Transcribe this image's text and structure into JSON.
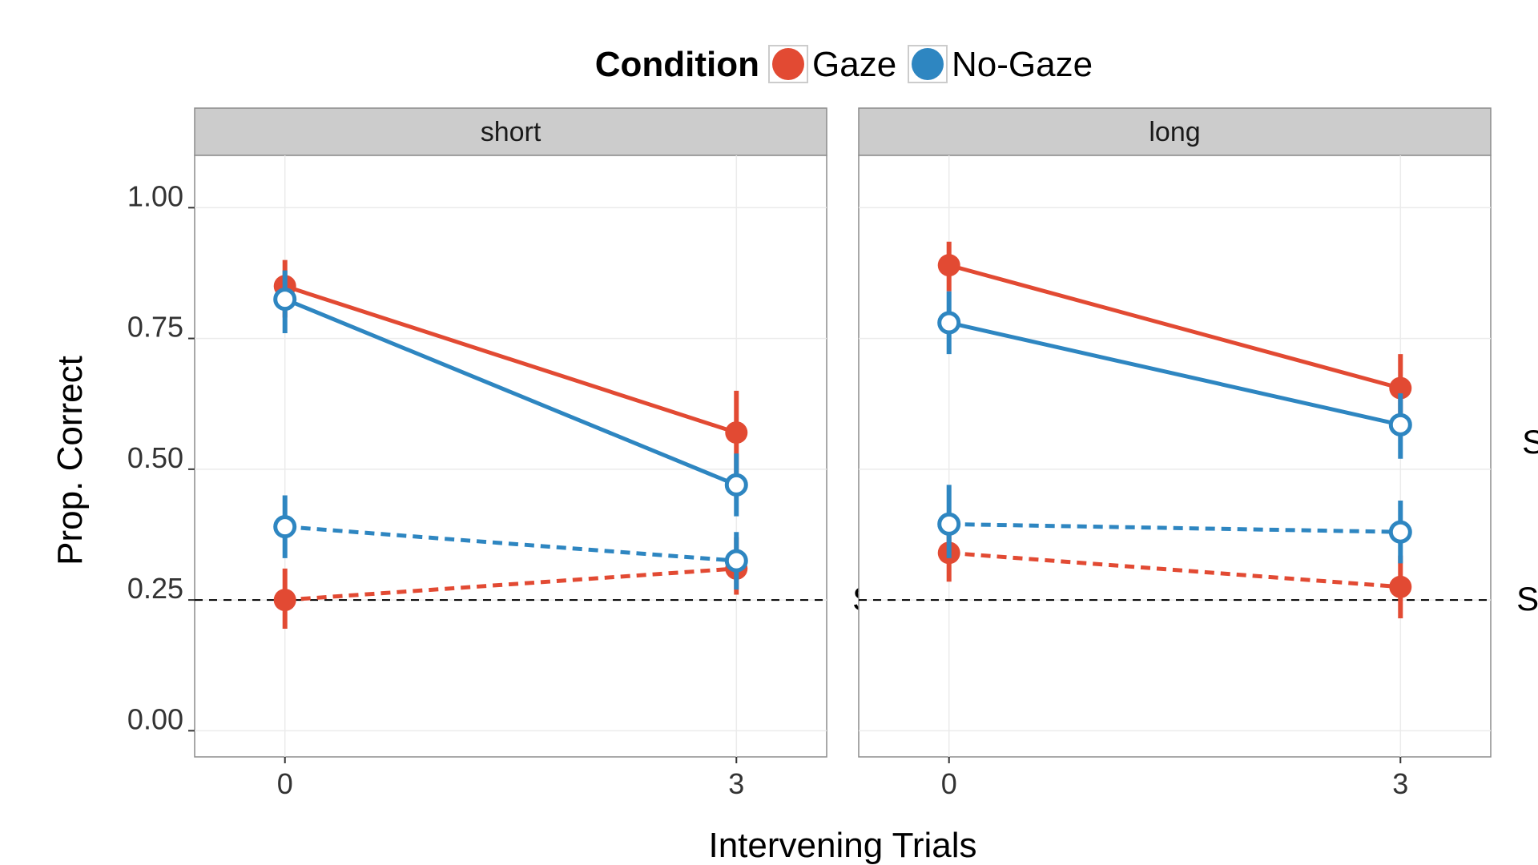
{
  "chart_data": {
    "type": "line",
    "legend": {
      "title": "Condition",
      "position": "top",
      "entries": [
        {
          "name": "Gaze",
          "color": "#E24A33"
        },
        {
          "name": "No-Gaze",
          "color": "#2E86C1"
        }
      ]
    },
    "xlabel": "Intervening Trials",
    "ylabel": "Prop. Correct",
    "ylim": [
      -0.05,
      1.1
    ],
    "y_ticks": [
      "0.00",
      "0.25",
      "0.50",
      "0.75",
      "1.00"
    ],
    "x_categories": [
      "0",
      "3"
    ],
    "xlim": [
      -0.6,
      3.6
    ],
    "reference_line": {
      "y": 0.25,
      "style": "dashed"
    },
    "grid": true,
    "facets": [
      {
        "label": "short",
        "annotations": [
          {
            "text": "Same",
            "x": 4.1,
            "y": 0.53
          },
          {
            "text": "Switch",
            "x": 4.1,
            "y": 0.23
          }
        ],
        "series": [
          {
            "condition": "Gaze",
            "trial_type": "Same",
            "line": "solid",
            "marker": "filled",
            "points": [
              {
                "x": 0,
                "y": 0.85,
                "lo": 0.79,
                "hi": 0.9
              },
              {
                "x": 3,
                "y": 0.57,
                "lo": 0.49,
                "hi": 0.65
              }
            ]
          },
          {
            "condition": "No-Gaze",
            "trial_type": "Same",
            "line": "solid",
            "marker": "open",
            "points": [
              {
                "x": 0,
                "y": 0.825,
                "lo": 0.76,
                "hi": 0.88
              },
              {
                "x": 3,
                "y": 0.47,
                "lo": 0.41,
                "hi": 0.53
              }
            ]
          },
          {
            "condition": "Gaze",
            "trial_type": "Switch",
            "line": "dashed",
            "marker": "filled",
            "points": [
              {
                "x": 0,
                "y": 0.25,
                "lo": 0.195,
                "hi": 0.31
              },
              {
                "x": 3,
                "y": 0.31,
                "lo": 0.26,
                "hi": 0.37
              }
            ]
          },
          {
            "condition": "No-Gaze",
            "trial_type": "Switch",
            "line": "dashed",
            "marker": "open",
            "points": [
              {
                "x": 0,
                "y": 0.39,
                "lo": 0.33,
                "hi": 0.45
              },
              {
                "x": 3,
                "y": 0.325,
                "lo": 0.27,
                "hi": 0.38
              }
            ]
          }
        ]
      },
      {
        "label": "long",
        "annotations": [
          {
            "text": "Same",
            "x": 4.1,
            "y": 0.53
          },
          {
            "text": "Switch",
            "x": 4.1,
            "y": 0.23
          }
        ],
        "series": [
          {
            "condition": "Gaze",
            "trial_type": "Same",
            "line": "solid",
            "marker": "filled",
            "points": [
              {
                "x": 0,
                "y": 0.89,
                "lo": 0.84,
                "hi": 0.935
              },
              {
                "x": 3,
                "y": 0.655,
                "lo": 0.595,
                "hi": 0.72
              }
            ]
          },
          {
            "condition": "No-Gaze",
            "trial_type": "Same",
            "line": "solid",
            "marker": "open",
            "points": [
              {
                "x": 0,
                "y": 0.78,
                "lo": 0.72,
                "hi": 0.84
              },
              {
                "x": 3,
                "y": 0.585,
                "lo": 0.52,
                "hi": 0.645
              }
            ]
          },
          {
            "condition": "Gaze",
            "trial_type": "Switch",
            "line": "dashed",
            "marker": "filled",
            "points": [
              {
                "x": 0,
                "y": 0.34,
                "lo": 0.285,
                "hi": 0.39
              },
              {
                "x": 3,
                "y": 0.275,
                "lo": 0.215,
                "hi": 0.335
              }
            ]
          },
          {
            "condition": "No-Gaze",
            "trial_type": "Switch",
            "line": "dashed",
            "marker": "open",
            "points": [
              {
                "x": 0,
                "y": 0.395,
                "lo": 0.33,
                "hi": 0.47
              },
              {
                "x": 3,
                "y": 0.38,
                "lo": 0.32,
                "hi": 0.44
              }
            ]
          }
        ]
      }
    ]
  }
}
